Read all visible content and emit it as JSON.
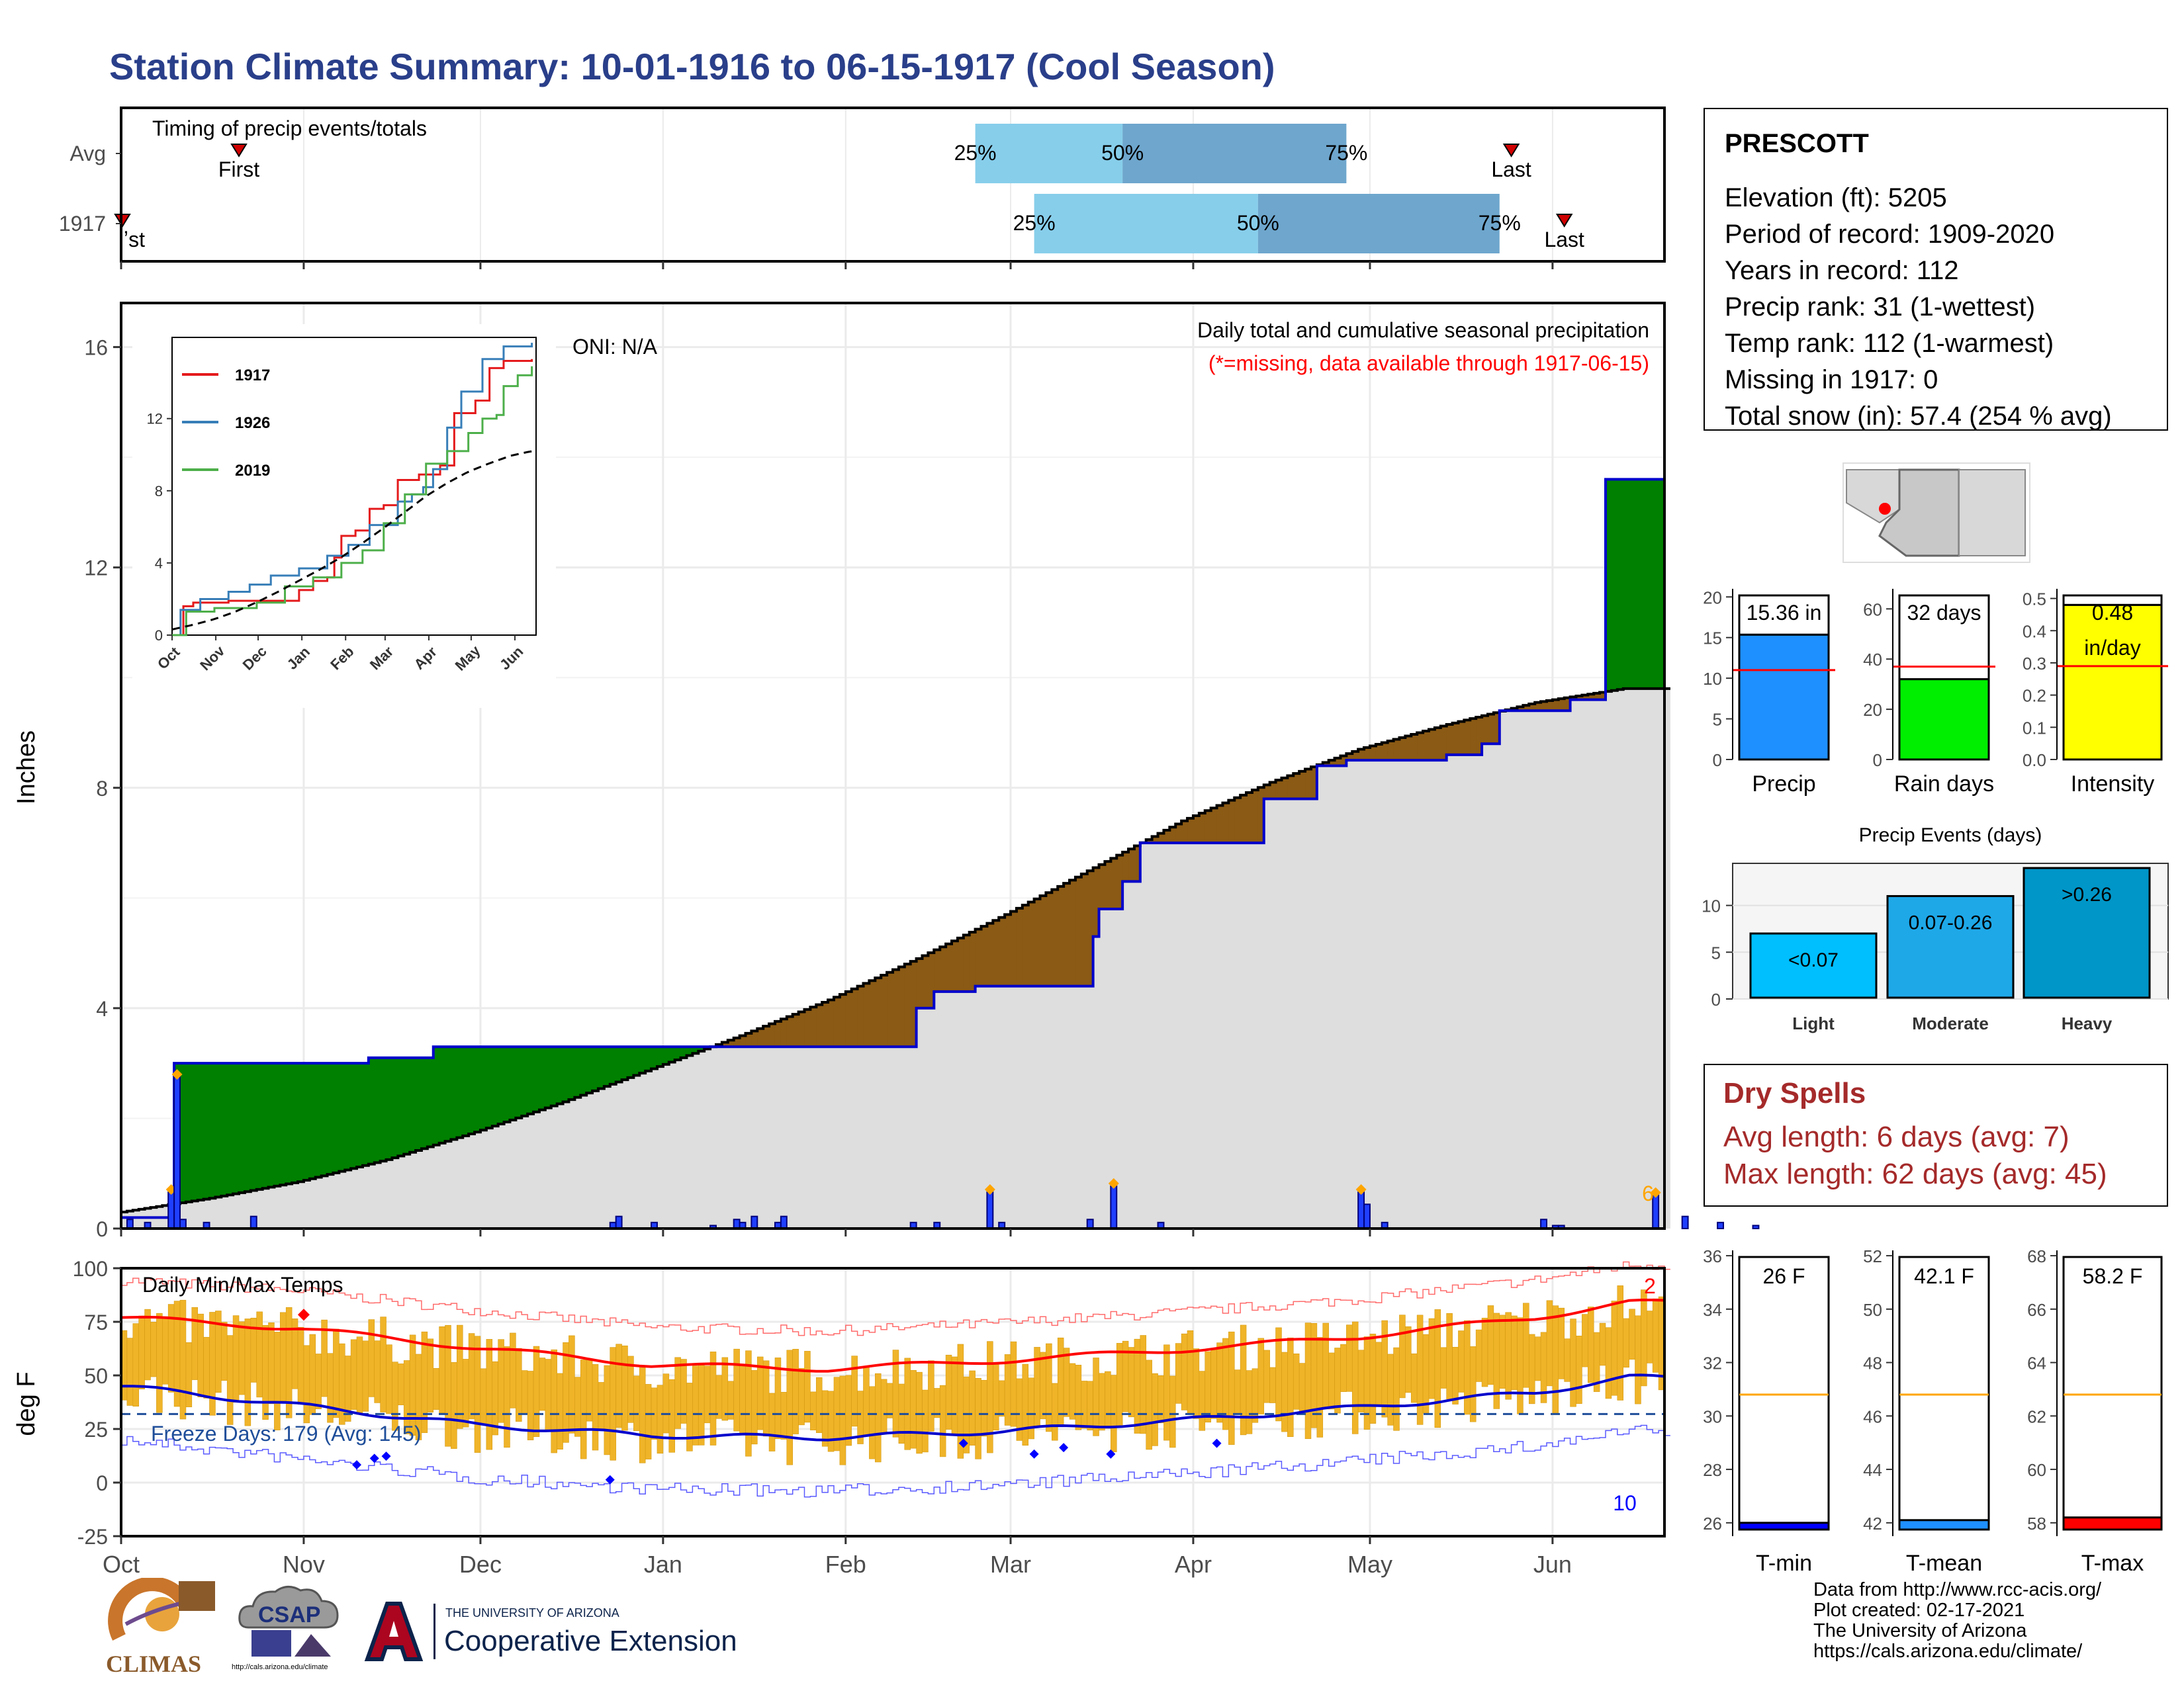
{
  "header": {
    "title": "Station Climate Summary: 10-01-1916 to 06-15-1917 (Cool Season)"
  },
  "colors": {
    "title": "#2a3f8a",
    "cumulative_fill_above": "#008000",
    "cumulative_fill_below": "#8b5a14",
    "normal_area": "#dedede",
    "precip_line": "#0000cc",
    "daily_bar": "#1f3fff",
    "timing_light": "#87ceeb",
    "timing_dark": "#6ea6cd",
    "temp_bars": "#f0b429",
    "tmax_normal": "#ff0000",
    "tmin_normal": "#0000cc",
    "dry_spell_text": "#a52a2a"
  },
  "timing_panel": {
    "label": "Timing of precip events/totals",
    "rows": [
      "Avg",
      "1917"
    ],
    "avg": {
      "first": "First",
      "last": "Last",
      "p25": "25%",
      "p50": "50%",
      "p75": "75%"
    },
    "yr": {
      "first": "ʼst",
      "last": "Last",
      "p25": "25%",
      "p50": "50%",
      "p75": "75%"
    }
  },
  "precip_panel": {
    "annotation_title": "Daily total and cumulative seasonal precipitation",
    "annotation_missing": "(*=missing, data available through 1917-06-15)",
    "oni": "ONI: N/A",
    "ylabel": "Inches",
    "count_label": "6",
    "inset_legend": [
      "1917",
      "1926",
      "2019"
    ],
    "inset_xticks": [
      "Oct",
      "Nov",
      "Dec",
      "Jan",
      "Feb",
      "Mar",
      "Apr",
      "May",
      "Jun"
    ],
    "inset_yticks": [
      "0",
      "4",
      "8",
      "12"
    ]
  },
  "temp_panel": {
    "label": "Daily Min/Max Temps",
    "freeze_days": "Freeze Days: 179 (Avg: 145)",
    "ylabel": "deg F",
    "count_high": "2",
    "count_low": "10"
  },
  "x_months": [
    "Oct",
    "Nov",
    "Dec",
    "Jan",
    "Feb",
    "Mar",
    "Apr",
    "May",
    "Jun"
  ],
  "station_box": {
    "name": "PRESCOTT",
    "lines": [
      "Elevation (ft): 5205",
      "Period of record: 1909-2020",
      "Years in record: 112",
      "Precip rank: 31 (1-wettest)",
      "Temp rank: 112 (1-warmest)",
      "Missing in 1917: 0",
      "Total snow (in): 57.4 (254 % avg)"
    ]
  },
  "mini_bars": [
    {
      "label": "Precip",
      "value_text": "15.36 in",
      "yticks": [
        "0",
        "5",
        "10",
        "15",
        "20"
      ]
    },
    {
      "label": "Rain days",
      "value_text": "32 days",
      "yticks": [
        "0",
        "20",
        "40",
        "60"
      ]
    },
    {
      "label": "Intensity",
      "value_text": "0.48",
      "unit_text": "in/day",
      "yticks": [
        "0.0",
        "0.1",
        "0.2",
        "0.3",
        "0.4",
        "0.5"
      ]
    }
  ],
  "precip_events": {
    "title": "Precip Events (days)",
    "bars": [
      {
        "label": "Light",
        "tag": "<0.07"
      },
      {
        "label": "Moderate",
        "tag": "0.07-0.26"
      },
      {
        "label": "Heavy",
        "tag": ">0.26"
      }
    ],
    "yticks": [
      "0",
      "5",
      "10"
    ]
  },
  "dry_spells": {
    "title": "Dry Spells",
    "avg_length": "Avg length: 6 days (avg: 7)",
    "max_length": "Max length: 62 days (avg: 45)"
  },
  "temp_bars": [
    {
      "label": "T-min",
      "value_text": "26 F",
      "yticks": [
        "26",
        "28",
        "30",
        "32",
        "34",
        "36"
      ]
    },
    {
      "label": "T-mean",
      "value_text": "42.1 F",
      "yticks": [
        "42",
        "44",
        "46",
        "48",
        "50",
        "52"
      ]
    },
    {
      "label": "T-max",
      "value_text": "58.2 F",
      "yticks": [
        "58",
        "60",
        "62",
        "64",
        "66",
        "68"
      ]
    }
  ],
  "footer": {
    "credits": [
      "Data from http://www.rcc-acis.org/",
      "Plot created: 02-17-2021",
      "The University of Arizona",
      "https://cals.arizona.edu/climate/"
    ],
    "logo_climas": "CLIMAS",
    "logo_csap": "CSAP",
    "logo_csap_url": "http://cals.arizona.edu/climate",
    "ua_line1": "THE UNIVERSITY OF ARIZONA",
    "ua_line2": "Cooperative Extension"
  },
  "chart_data": [
    {
      "type": "area",
      "title": "Daily total and cumulative seasonal precipitation",
      "ylabel": "Inches",
      "ylim": [
        0,
        16.8
      ],
      "yticks": [
        0,
        4,
        8,
        12,
        16
      ],
      "x_range_days": [
        0,
        256
      ],
      "cumulative_1917": {
        "x": [
          0,
          9,
          16,
          42,
          53,
          130,
          135,
          138,
          145,
          155,
          165,
          166,
          170,
          173,
          178,
          193,
          194,
          203,
          208,
          220,
          225,
          226,
          231,
          234,
          246,
          252
        ],
        "y": [
          0.2,
          3.0,
          3.0,
          3.1,
          3.3,
          3.3,
          4.0,
          4.3,
          4.4,
          4.4,
          5.3,
          5.8,
          6.3,
          7.0,
          7.0,
          7.0,
          7.8,
          8.4,
          8.5,
          8.5,
          8.6,
          8.6,
          8.8,
          9.4,
          9.6,
          13.6
        ]
      },
      "normal_cumulative": {
        "x": [
          0,
          15,
          30,
          45,
          60,
          75,
          90,
          105,
          120,
          135,
          150,
          165,
          180,
          195,
          210,
          225,
          240,
          255
        ],
        "y": [
          0.3,
          0.55,
          0.85,
          1.25,
          1.75,
          2.3,
          2.9,
          3.5,
          4.15,
          4.9,
          5.7,
          6.55,
          7.4,
          8.1,
          8.7,
          9.15,
          9.55,
          9.8
        ]
      },
      "daily_bars": {
        "x": [
          1,
          4,
          8,
          9,
          10,
          14,
          22,
          83,
          84,
          90,
          100,
          104,
          105,
          107,
          111,
          112,
          134,
          138,
          147,
          149,
          164,
          168,
          176,
          210,
          211,
          214,
          241,
          243,
          244,
          260,
          265,
          271,
          277
        ],
        "y": [
          0.15,
          0.1,
          0.6,
          2.5,
          0.15,
          0.1,
          0.2,
          0.1,
          0.2,
          0.1,
          0.05,
          0.15,
          0.1,
          0.2,
          0.1,
          0.2,
          0.1,
          0.1,
          0.6,
          0.1,
          0.15,
          0.7,
          0.1,
          0.6,
          0.4,
          0.1,
          0.15,
          0.05,
          0.05,
          0.55,
          0.2,
          0.1,
          0.05
        ]
      }
    },
    {
      "type": "line",
      "title": "Daily Min/Max Temps",
      "ylabel": "deg F",
      "ylim": [
        -25,
        100
      ],
      "yticks": [
        -25,
        0,
        25,
        50,
        75,
        100
      ],
      "freeze_line": 32,
      "normal_tmax": {
        "x": [
          0,
          30,
          60,
          90,
          120,
          150,
          180,
          210,
          240,
          256
        ],
        "y": [
          77,
          72,
          63,
          55,
          53,
          57,
          62,
          68,
          77,
          84
        ]
      },
      "normal_tmin": {
        "x": [
          0,
          30,
          60,
          90,
          120,
          150,
          180,
          210,
          240,
          256
        ],
        "y": [
          45,
          36,
          27,
          22,
          21,
          24,
          29,
          35,
          42,
          49
        ]
      }
    },
    {
      "type": "bar",
      "title": "Precip",
      "categories": [
        "1917"
      ],
      "values": [
        15.36
      ],
      "ylim": [
        0,
        21
      ],
      "avg_line": 11
    },
    {
      "type": "bar",
      "title": "Rain days",
      "categories": [
        "1917"
      ],
      "values": [
        32
      ],
      "ylim": [
        0,
        68
      ],
      "avg_line": 37
    },
    {
      "type": "bar",
      "title": "Intensity",
      "categories": [
        "1917"
      ],
      "values": [
        0.48
      ],
      "ylim": [
        0,
        0.53
      ],
      "avg_line": 0.29
    },
    {
      "type": "bar",
      "title": "Precip Events (days)",
      "categories": [
        "Light",
        "Moderate",
        "Heavy"
      ],
      "values": [
        7,
        11,
        14
      ],
      "ylim": [
        0,
        14.5
      ]
    },
    {
      "type": "bar",
      "title": "T-min / T-mean / T-max",
      "categories": [
        "T-min",
        "T-mean",
        "T-max"
      ],
      "values": [
        26,
        42.1,
        58.2
      ],
      "avg_lines": [
        30.8,
        46.8,
        62.8
      ]
    }
  ]
}
